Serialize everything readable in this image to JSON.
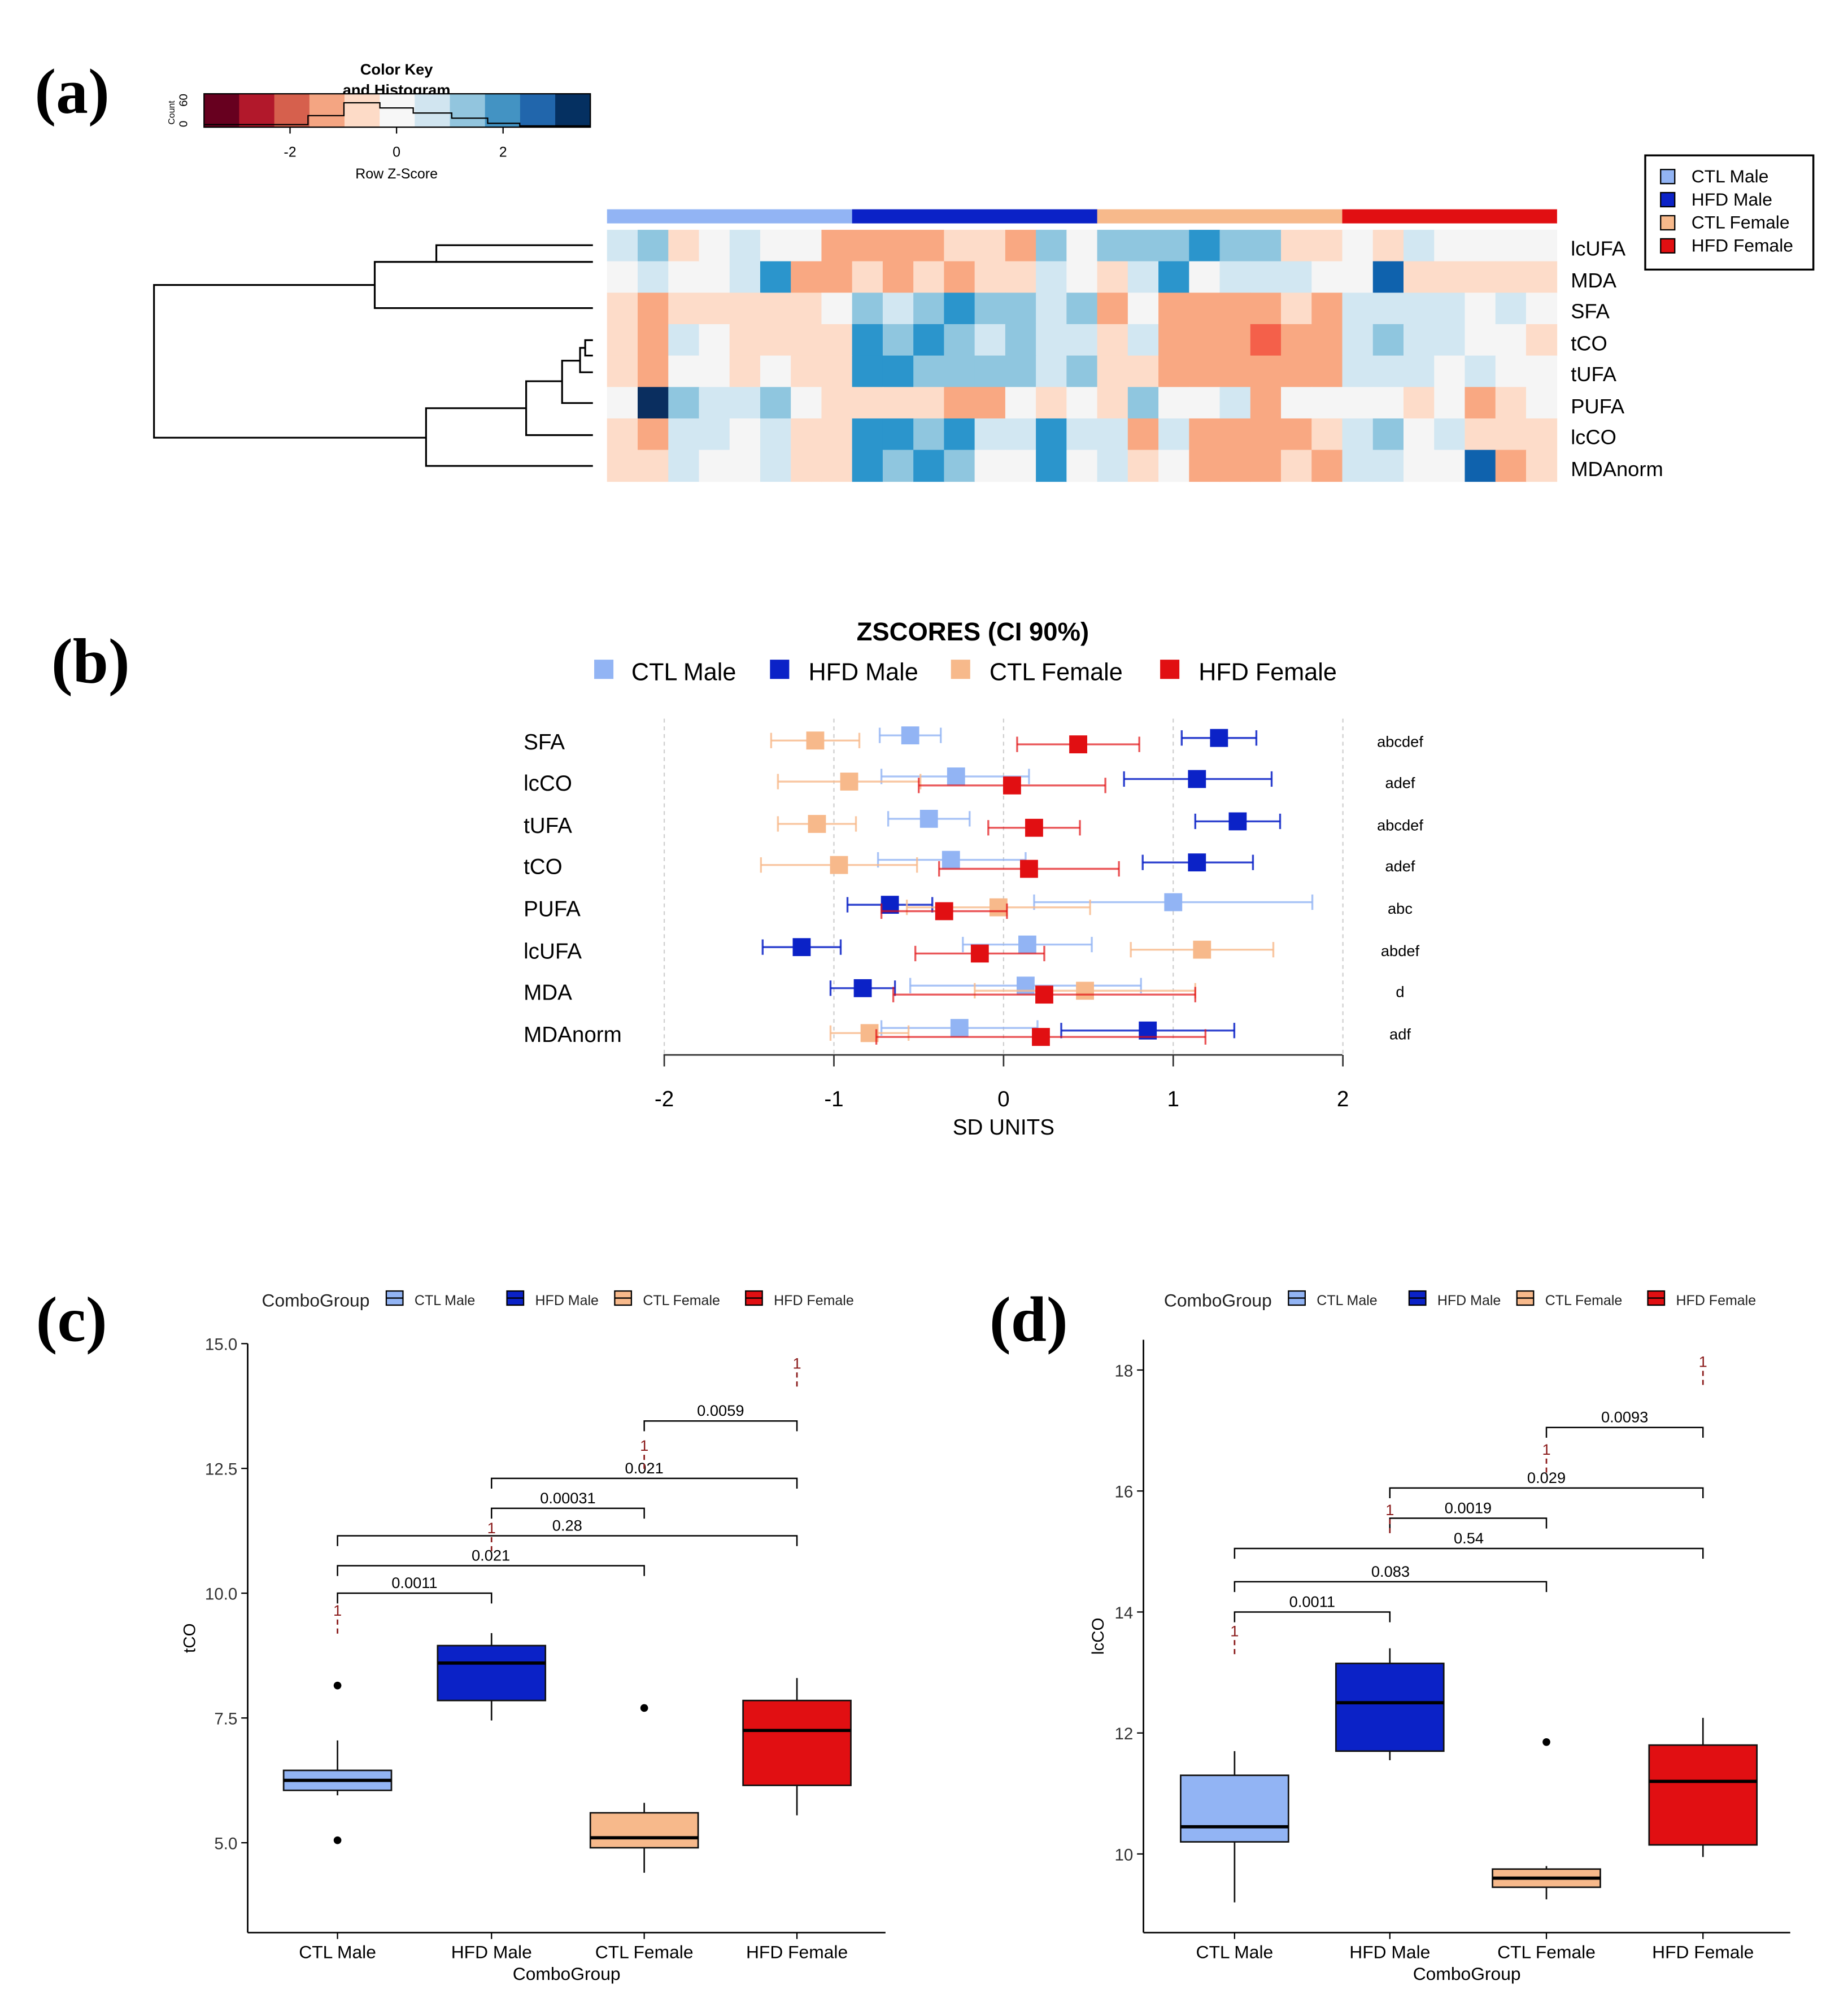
{
  "colors": {
    "ctl_male": "#92b4f4",
    "hfd_male": "#0b22c7",
    "ctl_female": "#f7b98b",
    "hfd_female": "#e10f12",
    "dendro": "#000000"
  },
  "panel_labels": [
    "(a)",
    "(b)",
    "(c)",
    "(d)"
  ],
  "heatmap": {
    "color_key_title": "Color Key",
    "color_key_subtitle": "and Histogram",
    "count_label": "Count",
    "count_ticks": [
      "0",
      "60"
    ],
    "zscore_label": "Row Z-Score",
    "zscore_ticks": [
      "-2",
      "0",
      "2"
    ],
    "key_colors": [
      "#67001f",
      "#b2182b",
      "#d6604d",
      "#f4a582",
      "#fddbc7",
      "#f7f7f7",
      "#d1e5f0",
      "#92c5de",
      "#4393c3",
      "#2166ac",
      "#053061"
    ],
    "legend": [
      "CTL Male",
      "HFD Male",
      "CTL Female",
      "HFD Female"
    ],
    "rows": [
      "lcUFA",
      "MDA",
      "SFA",
      "tCO",
      "tUFA",
      "PUFA",
      "lcCO",
      "MDAnorm"
    ],
    "group_sizes": [
      8,
      8,
      8,
      7
    ],
    "grid": [
      [
        1,
        2,
        -1,
        0,
        1,
        0,
        0,
        -2,
        -2,
        -2,
        -2,
        -1,
        -1,
        -2,
        2,
        0,
        2,
        2,
        2,
        3,
        2,
        2,
        -1,
        -1,
        0,
        -1,
        1,
        0,
        0,
        0,
        0
      ],
      [
        0,
        1,
        0,
        0,
        1,
        3,
        -2,
        -2,
        -1,
        -2,
        -1,
        -2,
        -1,
        -1,
        1,
        0,
        -1,
        1,
        3,
        0,
        1,
        1,
        1,
        0,
        0,
        4,
        -1,
        -1,
        -1,
        -1,
        -1
      ],
      [
        -1,
        -2,
        -1,
        -1,
        -1,
        -1,
        -1,
        0,
        2,
        1,
        2,
        3,
        2,
        2,
        1,
        2,
        -2,
        0,
        -2,
        -2,
        -2,
        -2,
        -1,
        -2,
        1,
        1,
        1,
        1,
        0,
        1,
        0
      ],
      [
        -1,
        -2,
        1,
        0,
        -1,
        -1,
        -1,
        -1,
        3,
        2,
        3,
        2,
        1,
        2,
        1,
        1,
        -1,
        1,
        -2,
        -2,
        -2,
        -3,
        -2,
        -2,
        1,
        2,
        1,
        1,
        0,
        0,
        -1
      ],
      [
        -1,
        -2,
        0,
        0,
        -1,
        0,
        -1,
        -1,
        3,
        3,
        2,
        2,
        2,
        2,
        1,
        2,
        -1,
        -1,
        -2,
        -2,
        -2,
        -2,
        -2,
        -2,
        1,
        1,
        1,
        0,
        1,
        0,
        0
      ],
      [
        0,
        5,
        2,
        1,
        1,
        2,
        0,
        -1,
        -1,
        -1,
        -1,
        -2,
        -2,
        0,
        -1,
        0,
        -1,
        2,
        0,
        0,
        1,
        -2,
        0,
        0,
        0,
        0,
        -1,
        0,
        -2,
        -1,
        0
      ],
      [
        -1,
        -2,
        1,
        1,
        0,
        1,
        -1,
        -1,
        3,
        3,
        2,
        3,
        1,
        1,
        3,
        1,
        1,
        -2,
        1,
        -2,
        -2,
        -2,
        -2,
        -1,
        1,
        2,
        0,
        1,
        -1,
        -1,
        -1
      ],
      [
        -1,
        -1,
        1,
        0,
        0,
        1,
        -1,
        -1,
        3,
        2,
        3,
        2,
        0,
        0,
        3,
        0,
        1,
        -1,
        0,
        -2,
        -2,
        -2,
        -1,
        -2,
        1,
        1,
        0,
        0,
        4,
        -2,
        -1
      ]
    ]
  },
  "zscores": {
    "title": "ZSCORES (CI 90%)",
    "legend": [
      "CTL Male",
      "HFD Male",
      "CTL Female",
      "HFD Female"
    ],
    "xlabel": "SD UNITS",
    "xticks": [
      "-2",
      "-1",
      "0",
      "1",
      "2"
    ]
  },
  "chart_data": [
    {
      "type": "scatter",
      "title": "ZSCORES (CI 90%)",
      "xlabel": "SD UNITS",
      "xlim": [
        -2,
        2
      ],
      "categories": [
        "SFA",
        "lcCO",
        "tUFA",
        "tCO",
        "PUFA",
        "lcUFA",
        "MDA",
        "MDAnorm"
      ],
      "letters": [
        "abcdef",
        "adef",
        "abcdef",
        "adef",
        "abc",
        "abdef",
        "d",
        "adf"
      ],
      "series": [
        {
          "name": "CTL Male",
          "mean": [
            -0.55,
            -0.28,
            -0.44,
            -0.31,
            1.0,
            0.14,
            0.13,
            -0.26
          ],
          "lo": [
            -0.73,
            -0.72,
            -0.68,
            -0.74,
            0.18,
            -0.24,
            -0.55,
            -0.72
          ],
          "hi": [
            -0.37,
            0.15,
            -0.2,
            0.13,
            1.82,
            0.52,
            0.81,
            0.2
          ]
        },
        {
          "name": "HFD Male",
          "mean": [
            1.27,
            1.14,
            1.38,
            1.14,
            -0.67,
            -1.19,
            -0.83,
            0.85
          ],
          "lo": [
            1.05,
            0.71,
            1.13,
            0.82,
            -0.92,
            -1.42,
            -1.02,
            0.34
          ],
          "hi": [
            1.49,
            1.58,
            1.63,
            1.47,
            -0.42,
            -0.96,
            -0.64,
            1.36
          ]
        },
        {
          "name": "CTL Female",
          "mean": [
            -1.11,
            -0.91,
            -1.1,
            -0.97,
            -0.03,
            1.17,
            0.48,
            -0.79
          ],
          "lo": [
            -1.37,
            -1.33,
            -1.33,
            -1.43,
            -0.57,
            0.75,
            -0.17,
            -1.02
          ],
          "hi": [
            -0.85,
            -0.49,
            -0.87,
            -0.51,
            0.51,
            1.59,
            1.13,
            -0.56
          ]
        },
        {
          "name": "HFD Female",
          "mean": [
            0.44,
            0.05,
            0.18,
            0.15,
            -0.35,
            -0.14,
            0.24,
            0.22
          ],
          "lo": [
            0.08,
            -0.5,
            -0.09,
            -0.38,
            -0.72,
            -0.52,
            -0.65,
            -0.75
          ],
          "hi": [
            0.8,
            0.6,
            0.45,
            0.68,
            0.02,
            0.24,
            1.13,
            1.19
          ]
        }
      ]
    },
    {
      "type": "box",
      "legend_title": "ComboGroup",
      "xlabel": "ComboGroup",
      "ylabel": "tCO",
      "ylim": [
        3.2,
        15.0
      ],
      "yticks": [
        5.0,
        7.5,
        10.0,
        12.5,
        15.0
      ],
      "ytick_labels": [
        "5.0",
        "7.5",
        "10.0",
        "12.5",
        "15.0"
      ],
      "categories": [
        "CTL Male",
        "HFD Male",
        "CTL Female",
        "HFD Female"
      ],
      "boxes": [
        {
          "min": 5.95,
          "q1": 6.05,
          "median": 6.25,
          "q3": 6.45,
          "max": 7.05,
          "outliers": [
            5.05,
            8.15
          ]
        },
        {
          "min": 7.45,
          "q1": 7.85,
          "median": 8.6,
          "q3": 8.95,
          "max": 9.2,
          "outliers": []
        },
        {
          "min": 4.4,
          "q1": 4.9,
          "median": 5.1,
          "q3": 5.6,
          "max": 5.8,
          "outliers": [
            7.7
          ]
        },
        {
          "min": 5.55,
          "q1": 6.15,
          "median": 7.25,
          "q3": 7.85,
          "max": 8.3,
          "outliers": []
        }
      ],
      "comparisons": [
        {
          "from": 0,
          "to": 1,
          "label": "0.0011",
          "y": 10.0
        },
        {
          "from": 0,
          "to": 2,
          "label": "0.021",
          "y": 10.55
        },
        {
          "from": 0,
          "to": 3,
          "label": "0.28",
          "y": 11.15
        },
        {
          "from": 1,
          "to": 2,
          "label": "0.00031",
          "y": 11.7
        },
        {
          "from": 1,
          "to": 3,
          "label": "0.021",
          "y": 12.3
        },
        {
          "from": 2,
          "to": 3,
          "label": "0.0059",
          "y": 13.45
        }
      ],
      "marks": [
        {
          "group": 0,
          "y": 9.55,
          "label": "1"
        },
        {
          "group": 1,
          "y": 11.2,
          "label": "1"
        },
        {
          "group": 2,
          "y": 12.85,
          "label": "1"
        },
        {
          "group": 3,
          "y": 14.5,
          "label": "1"
        }
      ]
    },
    {
      "type": "box",
      "legend_title": "ComboGroup",
      "xlabel": "ComboGroup",
      "ylabel": "lcCO",
      "ylim": [
        8.7,
        18.5
      ],
      "yticks": [
        10,
        12,
        14,
        16,
        18
      ],
      "ytick_labels": [
        "10",
        "12",
        "14",
        "16",
        "18"
      ],
      "categories": [
        "CTL Male",
        "HFD Male",
        "CTL Female",
        "HFD Female"
      ],
      "boxes": [
        {
          "min": 9.2,
          "q1": 10.2,
          "median": 10.45,
          "q3": 11.3,
          "max": 11.7,
          "outliers": []
        },
        {
          "min": 11.55,
          "q1": 11.7,
          "median": 12.5,
          "q3": 13.15,
          "max": 13.4,
          "outliers": []
        },
        {
          "min": 9.25,
          "q1": 9.45,
          "median": 9.6,
          "q3": 9.75,
          "max": 9.8,
          "outliers": [
            11.85
          ]
        },
        {
          "min": 9.95,
          "q1": 10.15,
          "median": 11.2,
          "q3": 11.8,
          "max": 12.25,
          "outliers": []
        }
      ],
      "comparisons": [
        {
          "from": 0,
          "to": 1,
          "label": "0.0011",
          "y": 14.0
        },
        {
          "from": 0,
          "to": 2,
          "label": "0.083",
          "y": 14.5
        },
        {
          "from": 0,
          "to": 3,
          "label": "0.54",
          "y": 15.05
        },
        {
          "from": 1,
          "to": 2,
          "label": "0.0019",
          "y": 15.55
        },
        {
          "from": 1,
          "to": 3,
          "label": "0.029",
          "y": 16.05
        },
        {
          "from": 2,
          "to": 3,
          "label": "0.0093",
          "y": 17.05
        }
      ],
      "marks": [
        {
          "group": 0,
          "y": 13.6,
          "label": "1"
        },
        {
          "group": 1,
          "y": 15.6,
          "label": "1"
        },
        {
          "group": 2,
          "y": 16.6,
          "label": "1"
        },
        {
          "group": 3,
          "y": 18.05,
          "label": "1"
        }
      ]
    }
  ]
}
